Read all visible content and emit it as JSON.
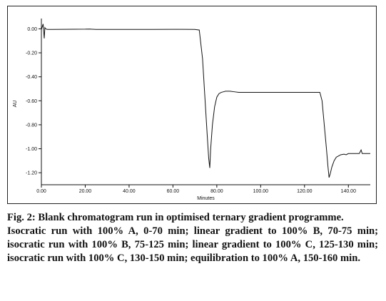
{
  "chart_data": {
    "type": "line",
    "xlabel": "Minutes",
    "ylabel": "AU",
    "xlim": [
      0,
      150
    ],
    "ylim": [
      -1.3,
      0.05
    ],
    "x_ticks": [
      {
        "value": 0,
        "label": "0.00"
      },
      {
        "value": 20,
        "label": "20.00"
      },
      {
        "value": 40,
        "label": "40.00"
      },
      {
        "value": 60,
        "label": "60.00"
      },
      {
        "value": 80,
        "label": "80.00"
      },
      {
        "value": 100,
        "label": "100.00"
      },
      {
        "value": 120,
        "label": "120.00"
      },
      {
        "value": 140,
        "label": "140.00"
      }
    ],
    "y_ticks": [
      {
        "value": 0,
        "label": "0.00"
      },
      {
        "value": -0.2,
        "label": "-0.20"
      },
      {
        "value": -0.4,
        "label": "-0.40"
      },
      {
        "value": -0.6,
        "label": "-0.60"
      },
      {
        "value": -0.8,
        "label": "-0.80"
      },
      {
        "value": -1.0,
        "label": "-1.00"
      },
      {
        "value": -1.2,
        "label": "-1.20"
      }
    ],
    "grid": false,
    "series": [
      {
        "color": "#111111",
        "x": [
          0,
          0.8,
          1.3,
          1.6,
          2.0,
          2.6,
          5,
          10,
          20,
          22,
          25,
          30,
          40,
          50,
          60,
          70,
          72,
          73.5,
          74.5,
          75.5,
          76.3,
          76.8,
          77.2,
          78,
          79,
          80,
          81,
          82,
          83,
          84,
          86,
          88,
          90,
          93,
          96,
          100,
          110,
          120,
          126,
          127,
          128,
          129,
          130,
          130.7,
          131.2,
          131.7,
          132.5,
          133.5,
          134.5,
          135.5,
          136.5,
          138,
          139,
          140,
          142,
          144,
          145,
          145.8,
          146.3,
          147,
          150
        ],
        "y": [
          -0.005,
          0.04,
          -0.08,
          0.01,
          0.0,
          -0.005,
          -0.005,
          -0.004,
          -0.003,
          -0.002,
          -0.005,
          -0.005,
          -0.005,
          -0.005,
          -0.004,
          -0.005,
          -0.01,
          -0.25,
          -0.55,
          -0.85,
          -1.08,
          -1.16,
          -1.0,
          -0.8,
          -0.65,
          -0.57,
          -0.54,
          -0.53,
          -0.525,
          -0.52,
          -0.52,
          -0.525,
          -0.53,
          -0.53,
          -0.53,
          -0.53,
          -0.53,
          -0.53,
          -0.53,
          -0.53,
          -0.6,
          -0.8,
          -1.0,
          -1.15,
          -1.24,
          -1.21,
          -1.15,
          -1.1,
          -1.07,
          -1.06,
          -1.05,
          -1.045,
          -1.05,
          -1.04,
          -1.04,
          -1.04,
          -1.04,
          -1.01,
          -1.04,
          -1.04,
          -1.04
        ]
      }
    ]
  },
  "caption": {
    "title": "Fig. 2: Blank chromatogram run in optimised ternary gradient programme.",
    "description": "Isocratic run with 100% A, 0-70 min; linear gradient to 100% B, 70-75 min; isocratic run with 100% B, 75-125 min; linear gradient to 100% C, 125-130 min; isocratic run with 100% C, 130-150 min; equilibration to 100% A, 150-160 min."
  }
}
